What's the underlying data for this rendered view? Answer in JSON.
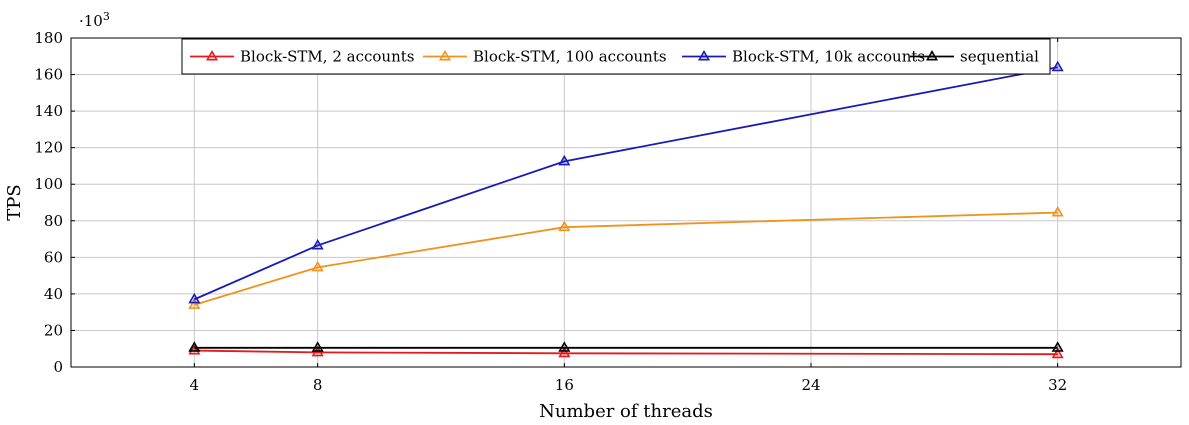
{
  "chart_data": {
    "type": "line",
    "xlabel": "Number of threads",
    "ylabel": "TPS",
    "y_multiplier": "·10",
    "y_multiplier_exp": "3",
    "xlim": [
      0,
      36
    ],
    "ylim": [
      0,
      180
    ],
    "xticks": [
      4,
      8,
      16,
      24,
      32
    ],
    "yticks": [
      0,
      20,
      40,
      60,
      80,
      100,
      120,
      140,
      160,
      180
    ],
    "grid": true,
    "marker": "triangle",
    "legend_position": "top-center",
    "x": [
      4,
      8,
      16,
      32
    ],
    "series": [
      {
        "name": "Block-STM, 2 accounts",
        "color": "#e41a1c",
        "values": [
          9,
          8,
          7.5,
          7
        ]
      },
      {
        "name": "Block-STM, 100 accounts",
        "color": "#f0921e",
        "values": [
          34,
          54.5,
          76.5,
          84.5
        ]
      },
      {
        "name": "Block-STM, 10k accounts",
        "color": "#1a1ab4",
        "values": [
          37,
          66.5,
          112.5,
          164
        ]
      },
      {
        "name": "sequential",
        "color": "#000000",
        "values": [
          10.5,
          10.5,
          10.5,
          10.5
        ]
      }
    ]
  }
}
